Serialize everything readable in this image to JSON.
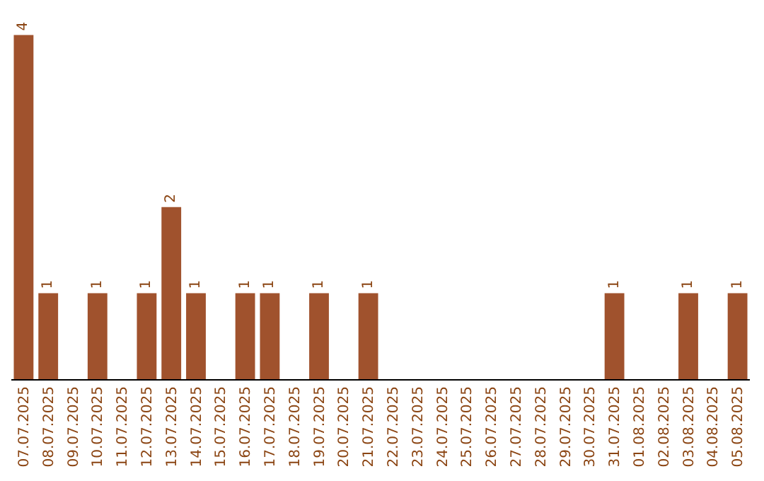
{
  "chart_data": {
    "type": "bar",
    "color": "#a0522d",
    "categories": [
      "07.07.2025",
      "08.07.2025",
      "09.07.2025",
      "10.07.2025",
      "11.07.2025",
      "12.07.2025",
      "13.07.2025",
      "14.07.2025",
      "15.07.2025",
      "16.07.2025",
      "17.07.2025",
      "18.07.2025",
      "19.07.2025",
      "20.07.2025",
      "21.07.2025",
      "22.07.2025",
      "23.07.2025",
      "24.07.2025",
      "25.07.2025",
      "26.07.2025",
      "27.07.2025",
      "28.07.2025",
      "29.07.2025",
      "30.07.2025",
      "31.07.2025",
      "01.08.2025",
      "02.08.2025",
      "03.08.2025",
      "04.08.2025",
      "05.08.2025"
    ],
    "values": [
      4,
      1,
      0,
      1,
      0,
      1,
      2,
      1,
      0,
      1,
      1,
      0,
      1,
      0,
      1,
      0,
      0,
      0,
      0,
      0,
      0,
      0,
      0,
      0,
      1,
      0,
      0,
      1,
      0,
      1
    ],
    "value_labels": [
      "4",
      "1",
      null,
      "1",
      null,
      "1",
      "2",
      "1",
      null,
      "1",
      "1",
      null,
      "1",
      null,
      "1",
      null,
      null,
      null,
      null,
      null,
      null,
      null,
      null,
      null,
      "1",
      null,
      null,
      "1",
      null,
      "1"
    ],
    "grid": false,
    "legend": false
  }
}
